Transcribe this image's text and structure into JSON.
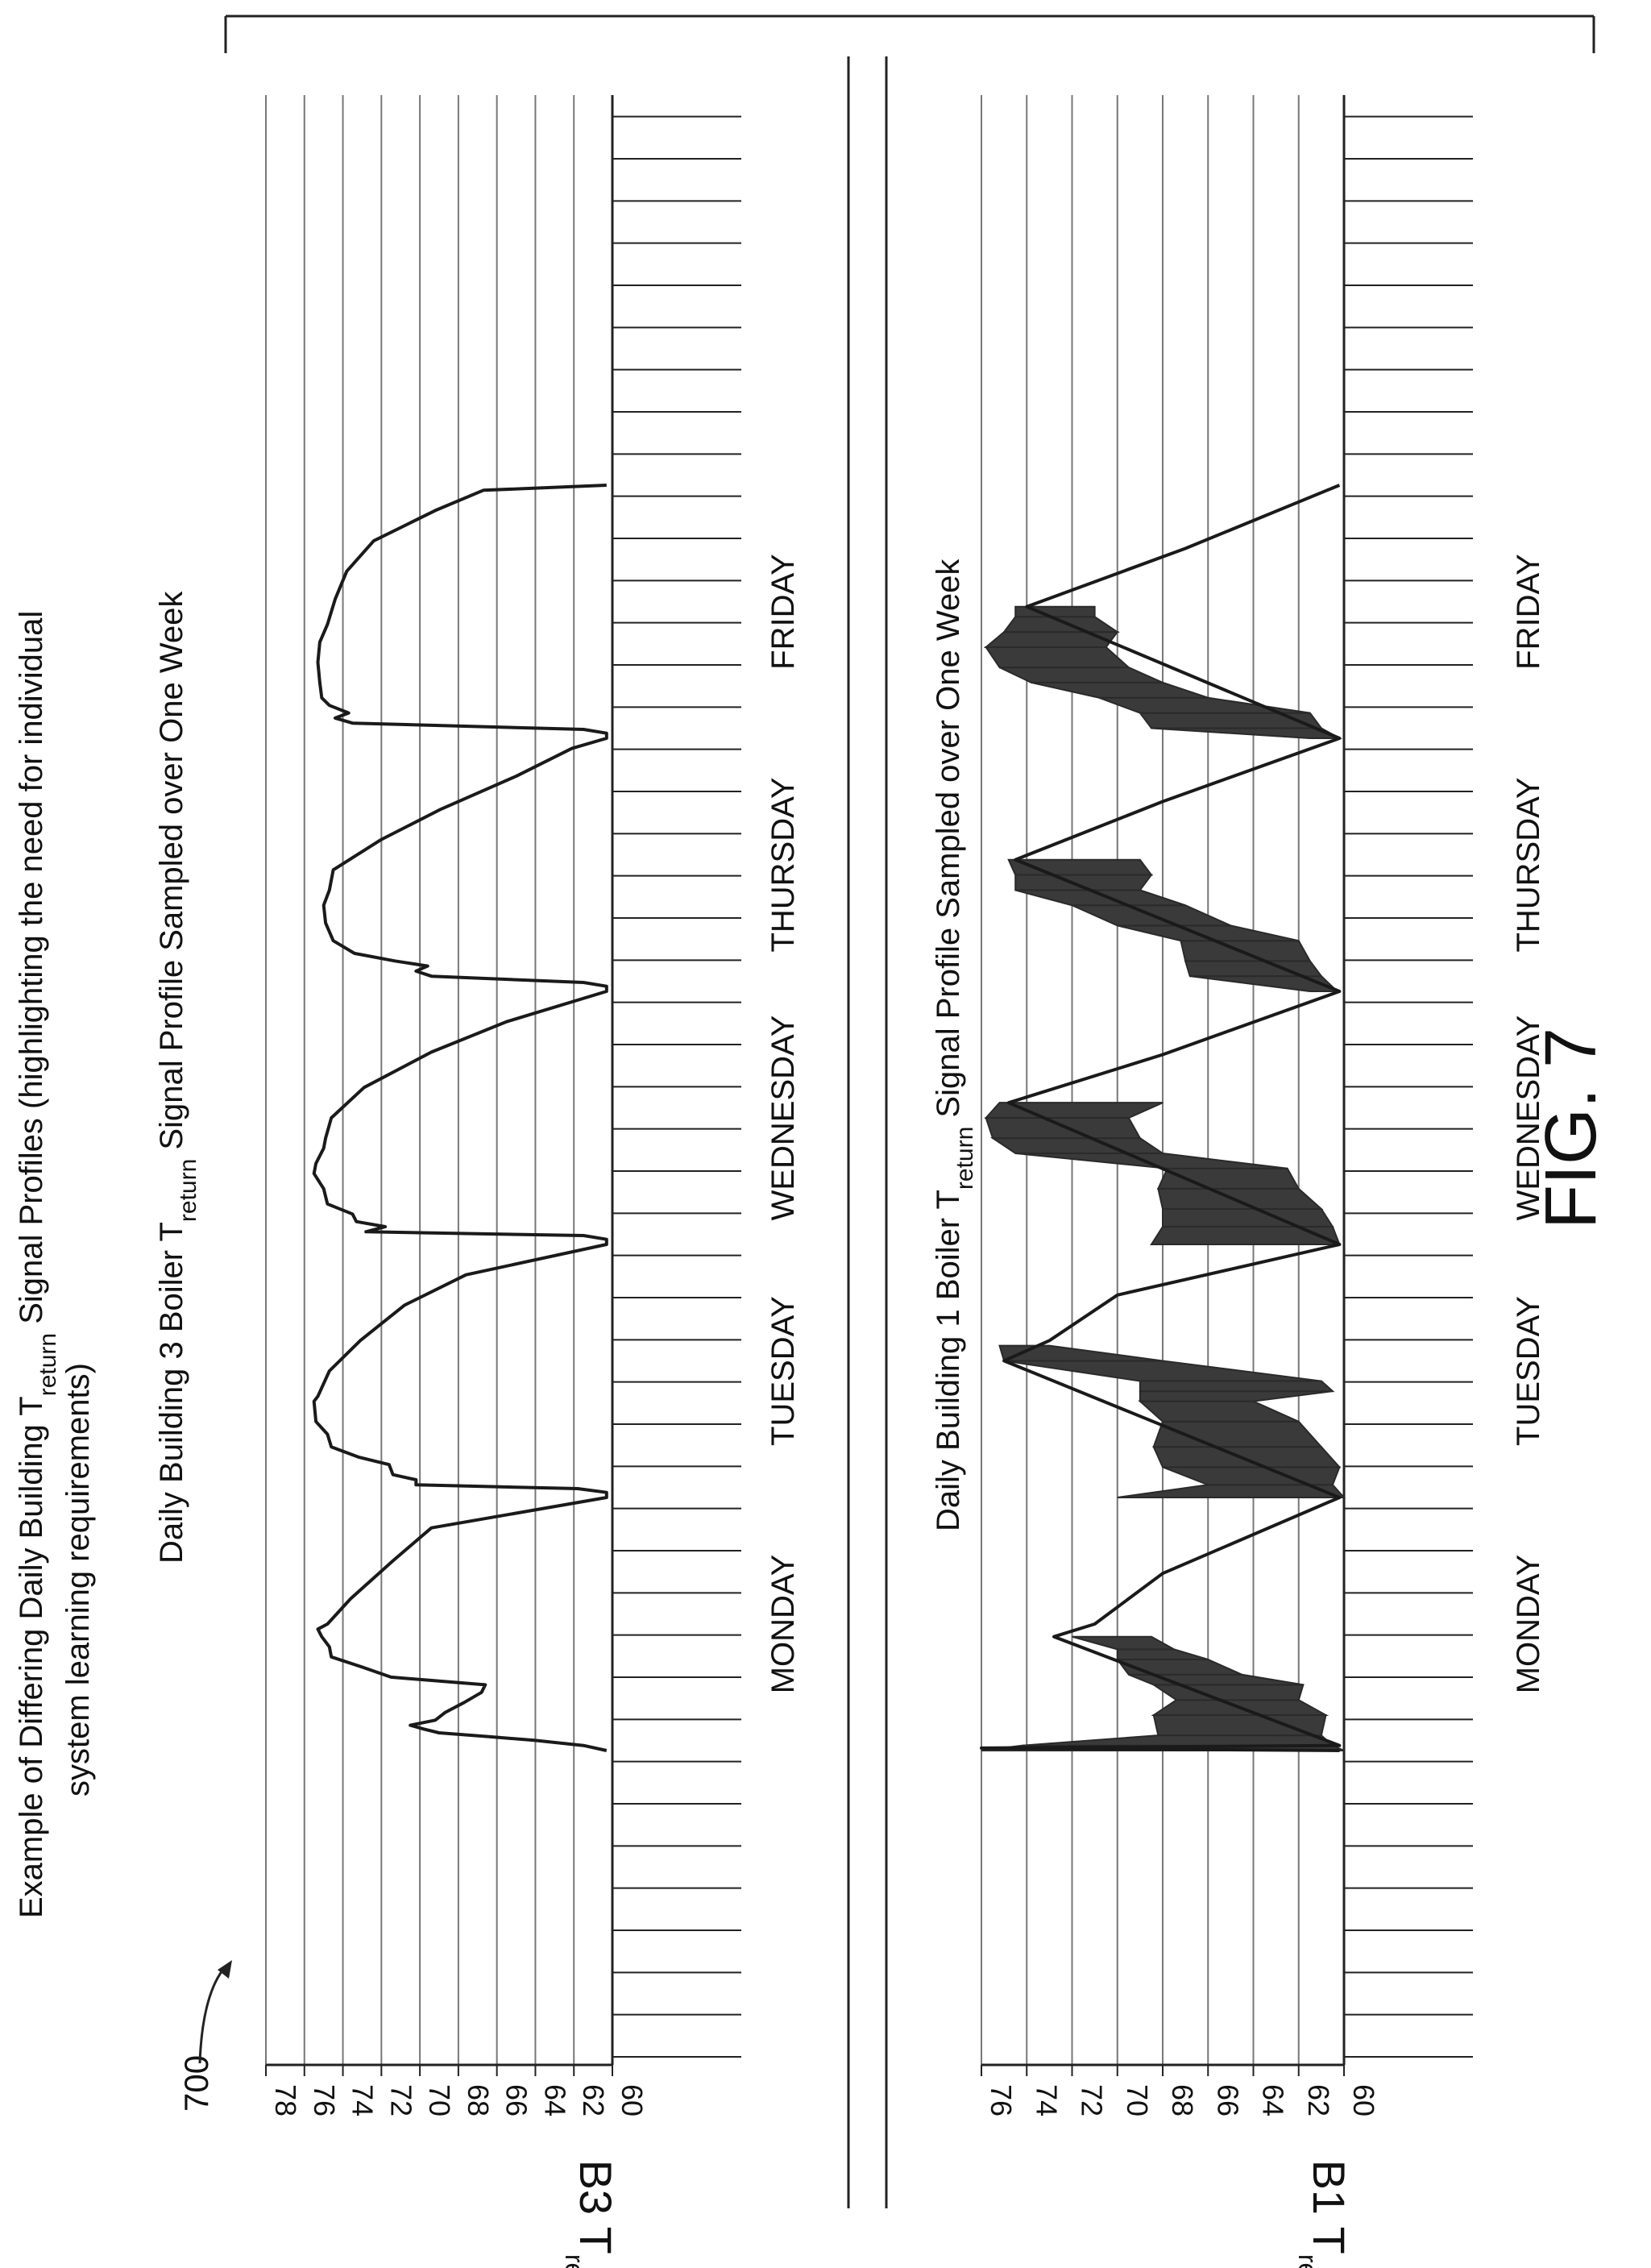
{
  "figure": {
    "label": "FIG. 7",
    "ref_number": "700",
    "main_title_line1": "Example of Differing Daily Building T",
    "main_title_sub": "return",
    "main_title_line1_rest": " Signal Profiles (highlighting the need for individual",
    "main_title_line2": "system learning requirements)"
  },
  "chart_data": [
    {
      "type": "line",
      "title": "Daily Building 3 Boiler T",
      "title_sub": "return",
      "title_rest": " Signal Profile Sampled over One Week",
      "ylabel": "B3  T",
      "ylabel_sub": "return",
      "ylim": [
        60,
        78
      ],
      "yticks": [
        "78",
        "76",
        "74",
        "72",
        "70",
        "68",
        "66",
        "64",
        "62",
        "60"
      ],
      "grid": true,
      "days": [
        "MONDAY",
        "TUESDAY",
        "WEDNESDAY",
        "THURSDAY",
        "FRIDAY"
      ],
      "x_unit": "day of week (0 = Monday 00:00)",
      "series": [
        {
          "points": [
            [
              0.0,
              60.3
            ],
            [
              0.02,
              61.5
            ],
            [
              0.04,
              64
            ],
            [
              0.055,
              66.4
            ],
            [
              0.07,
              69
            ],
            [
              0.085,
              69.8
            ],
            [
              0.1,
              70.5
            ],
            [
              0.12,
              69.2
            ],
            [
              0.15,
              68.7
            ],
            [
              0.19,
              67.7
            ],
            [
              0.23,
              66.8
            ],
            [
              0.26,
              66.6
            ],
            [
              0.29,
              71.5
            ],
            [
              0.33,
              73
            ],
            [
              0.37,
              74.6
            ],
            [
              0.41,
              74.7
            ],
            [
              0.45,
              75.1
            ],
            [
              0.48,
              75.3
            ],
            [
              0.5,
              74.8
            ],
            [
              0.6,
              73.6
            ],
            [
              0.75,
              71.4
            ],
            [
              0.88,
              69.4
            ],
            [
              1.0,
              60.3
            ],
            [
              1.02,
              60.3
            ],
            [
              1.035,
              61.8
            ],
            [
              1.05,
              70.2
            ],
            [
              1.07,
              70.2
            ],
            [
              1.09,
              71.4
            ],
            [
              1.13,
              71.6
            ],
            [
              1.16,
              73.2
            ],
            [
              1.2,
              74.6
            ],
            [
              1.25,
              74.8
            ],
            [
              1.3,
              75.4
            ],
            [
              1.38,
              75.5
            ],
            [
              1.4,
              75.3
            ],
            [
              1.5,
              74.7
            ],
            [
              1.62,
              73.1
            ],
            [
              1.76,
              70.8
            ],
            [
              1.88,
              67.6
            ],
            [
              2.0,
              60.3
            ],
            [
              2.02,
              60.3
            ],
            [
              2.035,
              61.5
            ],
            [
              2.05,
              72.8
            ],
            [
              2.07,
              71.8
            ],
            [
              2.09,
              73.3
            ],
            [
              2.12,
              73.5
            ],
            [
              2.16,
              74.8
            ],
            [
              2.22,
              75.0
            ],
            [
              2.28,
              75.5
            ],
            [
              2.32,
              75.4
            ],
            [
              2.38,
              75.0
            ],
            [
              2.42,
              74.9
            ],
            [
              2.5,
              74.6
            ],
            [
              2.62,
              72.9
            ],
            [
              2.76,
              69.4
            ],
            [
              2.88,
              65.5
            ],
            [
              3.0,
              60.3
            ],
            [
              3.02,
              60.3
            ],
            [
              3.035,
              61.5
            ],
            [
              3.06,
              69.4
            ],
            [
              3.08,
              70.2
            ],
            [
              3.1,
              69.6
            ],
            [
              3.12,
              71.3
            ],
            [
              3.15,
              73.4
            ],
            [
              3.2,
              74.5
            ],
            [
              3.27,
              74.9
            ],
            [
              3.34,
              75.0
            ],
            [
              3.4,
              74.7
            ],
            [
              3.48,
              74.5
            ],
            [
              3.6,
              72.0
            ],
            [
              3.72,
              68.9
            ],
            [
              3.85,
              65.0
            ],
            [
              3.96,
              62.1
            ],
            [
              4.0,
              60.3
            ],
            [
              4.02,
              60.3
            ],
            [
              4.035,
              61.5
            ],
            [
              4.06,
              73.5
            ],
            [
              4.08,
              74.4
            ],
            [
              4.1,
              73.7
            ],
            [
              4.13,
              74.7
            ],
            [
              4.16,
              75.1
            ],
            [
              4.22,
              75.2
            ],
            [
              4.3,
              75.3
            ],
            [
              4.38,
              75.2
            ],
            [
              4.45,
              74.8
            ],
            [
              4.55,
              74.4
            ],
            [
              4.66,
              73.8
            ],
            [
              4.78,
              72.4
            ],
            [
              4.9,
              69.2
            ],
            [
              4.98,
              66.7
            ],
            [
              5.0,
              60.3
            ]
          ]
        }
      ]
    },
    {
      "type": "line",
      "title": "Daily Building 1 Boiler T",
      "title_sub": "return",
      "title_rest": " Signal Profile Sampled over One Week",
      "ylabel": "B1  T",
      "ylabel_sub": "return",
      "ylim": [
        60,
        76
      ],
      "yticks": [
        "76",
        "74",
        "72",
        "70",
        "68",
        "66",
        "64",
        "62",
        "60"
      ],
      "grid": true,
      "days": [
        "MONDAY",
        "TUESDAY",
        "WEDNESDAY",
        "THURSDAY",
        "FRIDAY"
      ],
      "x_unit": "day of week (0 = Monday 00:00)",
      "band_series": [
        {
          "segments": [
            [
              0.0,
              60.0,
              76.0
            ],
            [
              0.02,
              60.5,
              74.2
            ],
            [
              0.06,
              61.0,
              68.2
            ],
            [
              0.14,
              60.8,
              68.4
            ],
            [
              0.2,
              62.0,
              67.4
            ],
            [
              0.26,
              61.8,
              68.4
            ],
            [
              0.3,
              64.5,
              69.5
            ],
            [
              0.36,
              66.0,
              70.0
            ],
            [
              0.4,
              67.5,
              70.0
            ],
            [
              0.45,
              68.5,
              72.0
            ],
            [
              1.0,
              60.0,
              70.0
            ],
            [
              1.05,
              60.5,
              66.0
            ],
            [
              1.12,
              60.2,
              68.0
            ],
            [
              1.2,
              61.0,
              68.4
            ],
            [
              1.3,
              62.0,
              68.0
            ],
            [
              1.38,
              64.0,
              69.0
            ],
            [
              1.42,
              60.5,
              69.0
            ],
            [
              1.46,
              61.0,
              69.0
            ],
            [
              1.54,
              68.0,
              75.0
            ],
            [
              1.6,
              73.0,
              75.2
            ],
            [
              2.0,
              60.2,
              68.5
            ],
            [
              2.07,
              60.5,
              68.0
            ],
            [
              2.14,
              61.0,
              68.0
            ],
            [
              2.22,
              62.0,
              68.2
            ],
            [
              2.3,
              62.5,
              67.8
            ],
            [
              2.36,
              68.0,
              74.5
            ],
            [
              2.42,
              69.0,
              75.5
            ],
            [
              2.5,
              69.5,
              75.8
            ],
            [
              2.56,
              68.0,
              75.2
            ],
            [
              3.0,
              60.3,
              61.5
            ],
            [
              3.06,
              61.0,
              66.8
            ],
            [
              3.12,
              61.5,
              67.0
            ],
            [
              3.2,
              62.0,
              67.2
            ],
            [
              3.26,
              65.0,
              70.0
            ],
            [
              3.34,
              67.0,
              72.0
            ],
            [
              3.4,
              69.0,
              74.5
            ],
            [
              3.46,
              68.5,
              74.5
            ],
            [
              3.52,
              69.0,
              74.8
            ],
            [
              4.0,
              60.2,
              61.5
            ],
            [
              4.04,
              61.0,
              68.5
            ],
            [
              4.1,
              61.5,
              69.0
            ],
            [
              4.16,
              66.0,
              70.8
            ],
            [
              4.22,
              68.0,
              73.8
            ],
            [
              4.28,
              69.5,
              75.2
            ],
            [
              4.36,
              70.5,
              75.8
            ],
            [
              4.42,
              70.0,
              75.0
            ],
            [
              4.48,
              71.0,
              74.5
            ],
            [
              4.52,
              71.0,
              74.5
            ]
          ]
        }
      ],
      "series": [
        {
          "points": [
            [
              0.0,
              60.2
            ],
            [
              0.01,
              76.0
            ],
            [
              0.02,
              60.2
            ],
            [
              0.45,
              72.8
            ],
            [
              0.5,
              71.0
            ],
            [
              0.7,
              68.0
            ],
            [
              1.0,
              60.2
            ],
            [
              1.54,
              75.0
            ],
            [
              1.62,
              73.0
            ],
            [
              1.8,
              70.0
            ],
            [
              2.0,
              60.2
            ],
            [
              2.56,
              74.8
            ],
            [
              2.75,
              68.0
            ],
            [
              3.0,
              60.2
            ],
            [
              3.52,
              74.5
            ],
            [
              3.75,
              68.0
            ],
            [
              4.0,
              60.2
            ],
            [
              4.52,
              74.0
            ],
            [
              4.75,
              67.0
            ],
            [
              5.0,
              60.2
            ]
          ]
        }
      ]
    }
  ]
}
